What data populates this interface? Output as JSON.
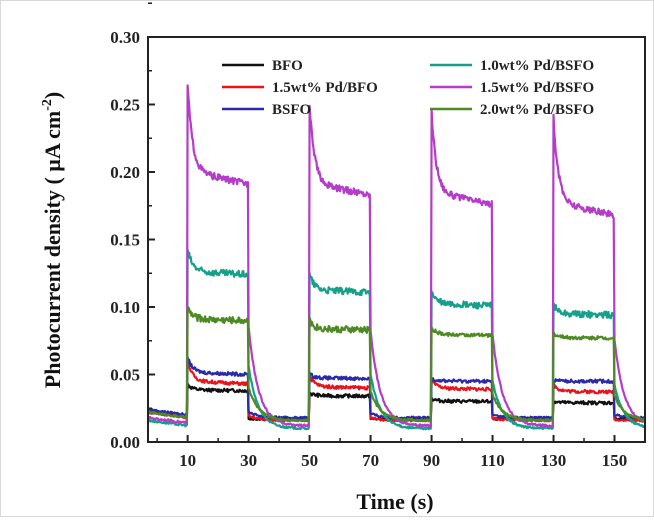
{
  "chart_data": {
    "type": "line",
    "title": "",
    "xlabel": "Time (s)",
    "ylabel": "Photocurrent density ( µA cm⁻²)",
    "ylabel_main": "Photocurrent density ( µA cm",
    "ylabel_sup": "-2",
    "ylabel_end": ")",
    "xlim": [
      -3,
      160
    ],
    "ylim": [
      0.0,
      0.3
    ],
    "xticks": [
      10,
      30,
      50,
      70,
      90,
      110,
      130,
      150
    ],
    "xtick_labels": [
      "10",
      "30",
      "50",
      "70",
      "90",
      "110",
      "130",
      "150"
    ],
    "yticks": [
      0.0,
      0.05,
      0.1,
      0.15,
      0.2,
      0.25,
      0.3
    ],
    "ytick_labels": [
      "0.00",
      "0.05",
      "0.10",
      "0.15",
      "0.20",
      "0.25",
      "0.30"
    ],
    "grid": false,
    "legend_position": "top",
    "light_on_intervals": [
      [
        10,
        30
      ],
      [
        50,
        70
      ],
      [
        90,
        110
      ],
      [
        130,
        150
      ]
    ],
    "series": [
      {
        "name": "BFO",
        "color": "#111111",
        "dark": 0.017,
        "on": [
          {
            "peak": 0.042,
            "end": 0.038
          },
          {
            "peak": 0.036,
            "end": 0.034
          },
          {
            "peak": 0.032,
            "end": 0.03
          },
          {
            "peak": 0.03,
            "end": 0.029
          }
        ]
      },
      {
        "name": "1.5wt% Pd/BFO",
        "color": "#e8141c",
        "dark": 0.016,
        "on": [
          {
            "peak": 0.058,
            "end": 0.043
          },
          {
            "peak": 0.048,
            "end": 0.04
          },
          {
            "peak": 0.045,
            "end": 0.039
          },
          {
            "peak": 0.042,
            "end": 0.037
          }
        ]
      },
      {
        "name": "BSFO",
        "color": "#2a2aa8",
        "dark": 0.018,
        "on": [
          {
            "peak": 0.061,
            "end": 0.05
          },
          {
            "peak": 0.05,
            "end": 0.047
          },
          {
            "peak": 0.047,
            "end": 0.045
          },
          {
            "peak": 0.046,
            "end": 0.045
          }
        ]
      },
      {
        "name": "1.0wt% Pd/BSFO",
        "color": "#14a08a",
        "dark": 0.01,
        "on": [
          {
            "peak": 0.14,
            "end": 0.124
          },
          {
            "peak": 0.122,
            "end": 0.111
          },
          {
            "peak": 0.11,
            "end": 0.101
          },
          {
            "peak": 0.101,
            "end": 0.094
          }
        ]
      },
      {
        "name": "1.5wt% Pd/BSFO",
        "color": "#b43cc8",
        "dark": 0.012,
        "on": [
          {
            "peak": 0.255,
            "end": 0.191
          },
          {
            "peak": 0.241,
            "end": 0.183
          },
          {
            "peak": 0.236,
            "end": 0.176
          },
          {
            "peak": 0.231,
            "end": 0.168
          }
        ]
      },
      {
        "name": "2.0wt% Pd/BSFO",
        "color": "#4e8a24",
        "dark": 0.016,
        "on": [
          {
            "peak": 0.098,
            "end": 0.09
          },
          {
            "peak": 0.089,
            "end": 0.083
          },
          {
            "peak": 0.084,
            "end": 0.079
          },
          {
            "peak": 0.08,
            "end": 0.077
          }
        ]
      }
    ]
  }
}
